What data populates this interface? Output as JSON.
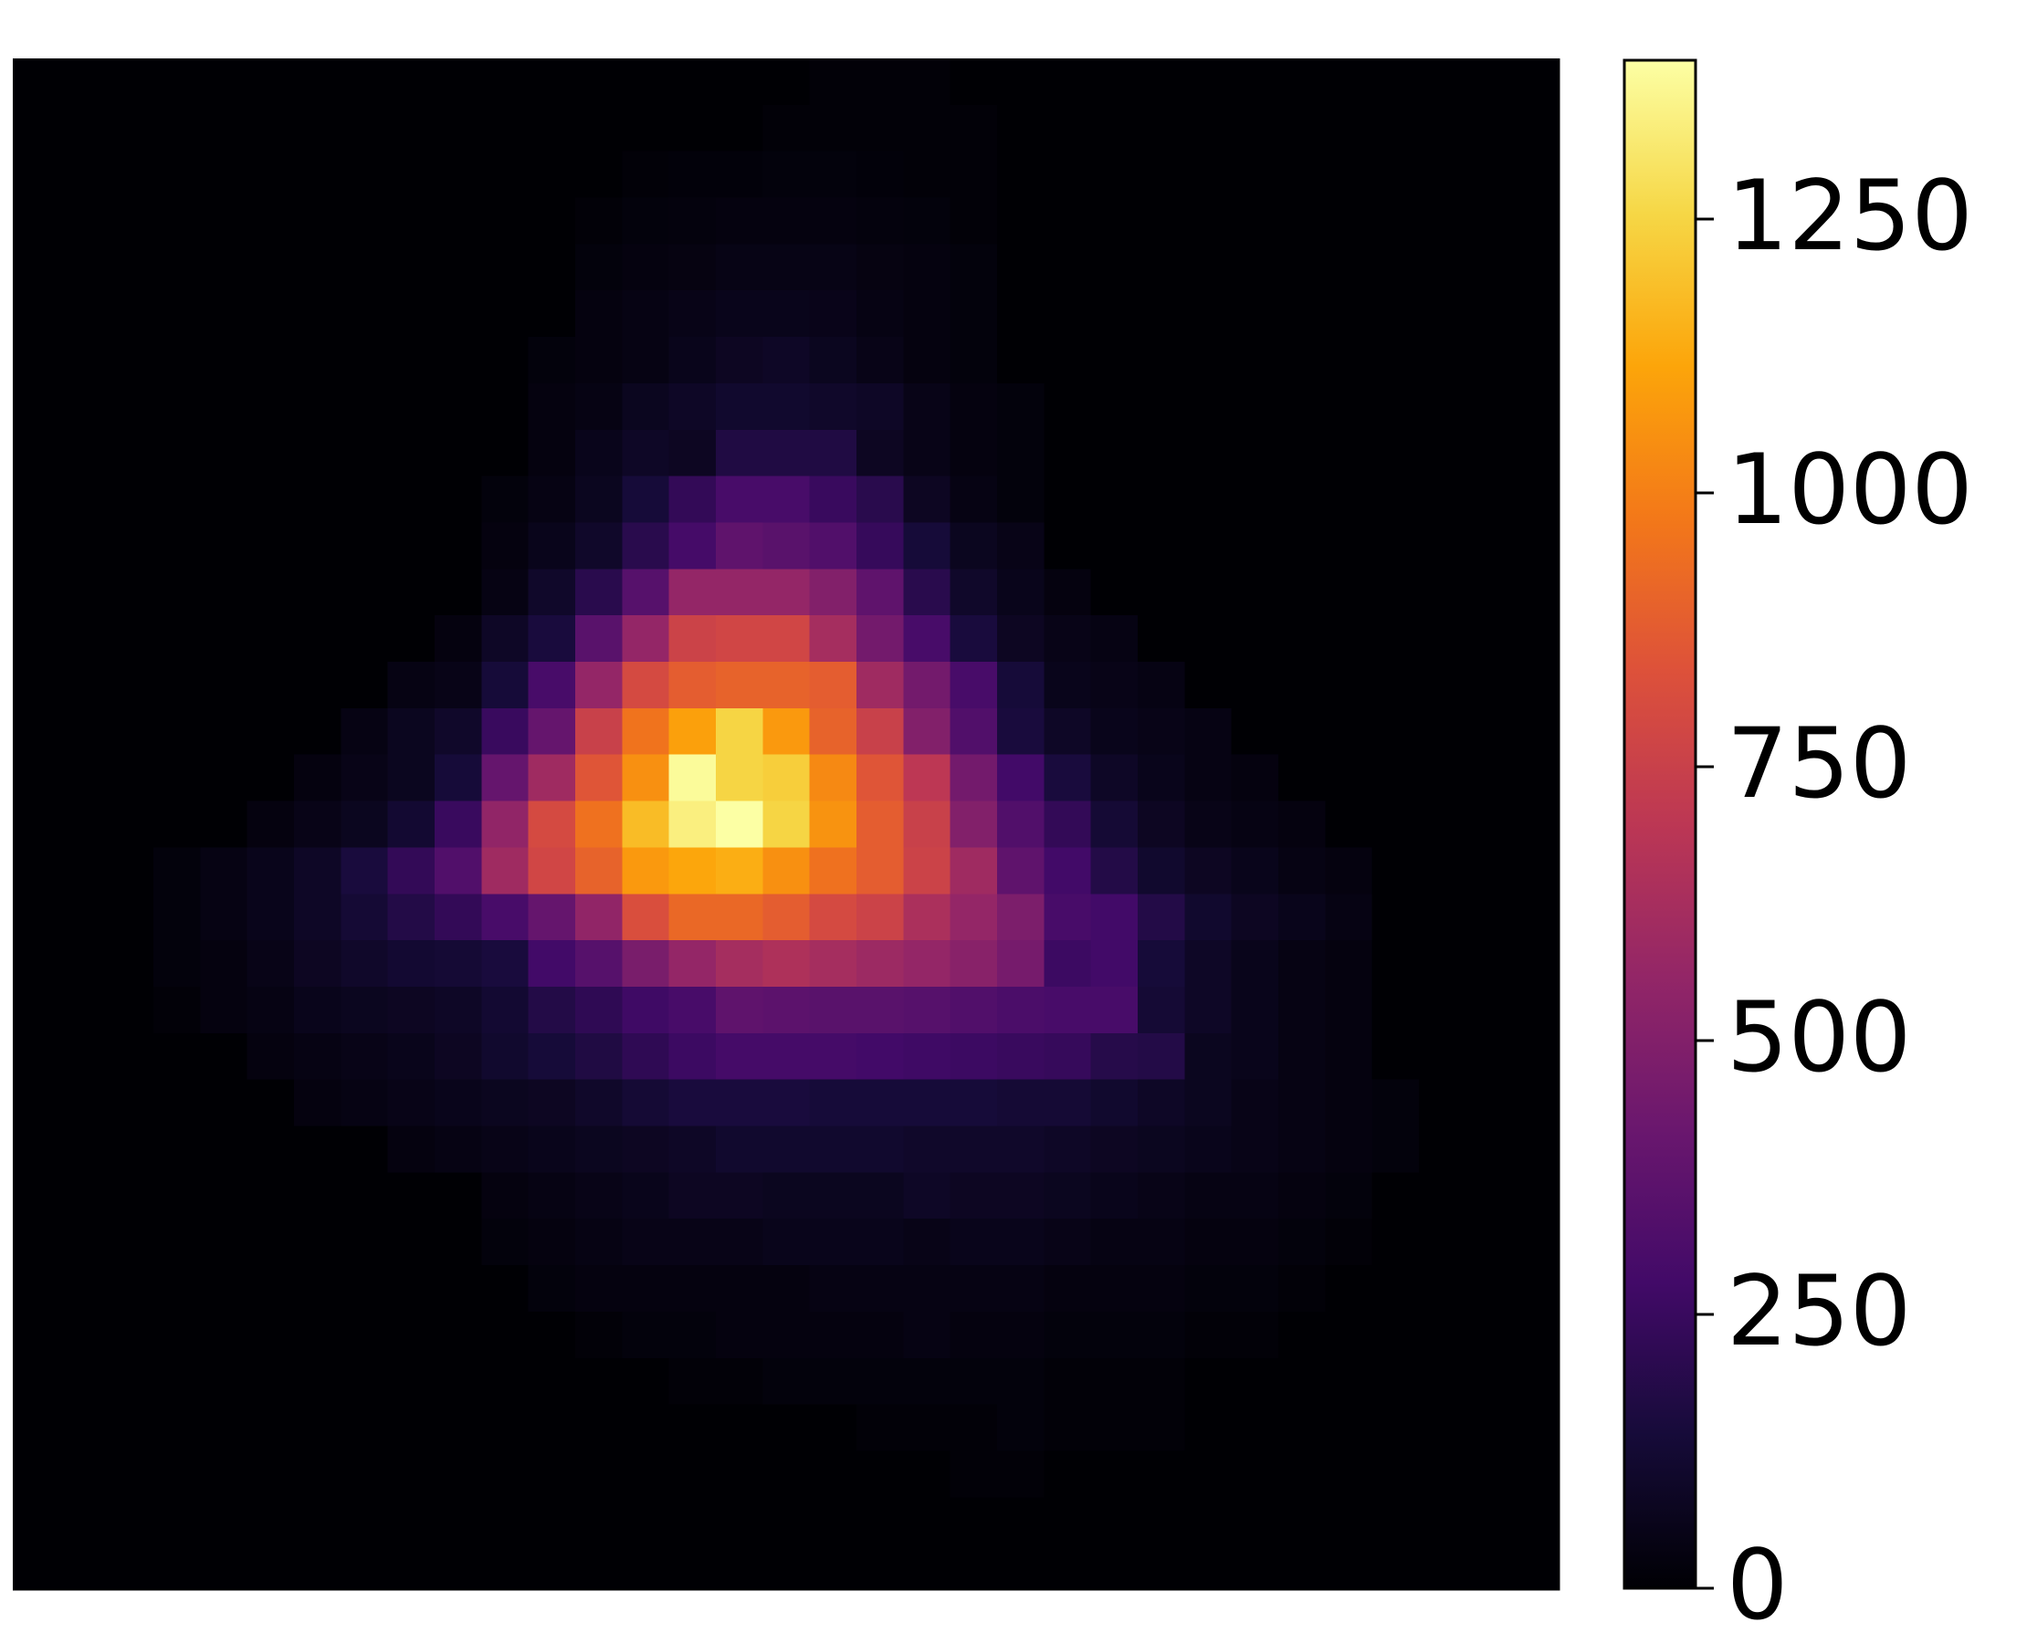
{
  "chart_data": {
    "type": "heatmap",
    "colormap": "inferno",
    "clim": [
      0,
      1395
    ],
    "cticks": [
      0,
      250,
      500,
      750,
      1000,
      1250
    ],
    "z": [
      [
        0,
        0,
        0,
        0,
        0,
        0,
        0,
        0,
        0,
        0,
        0,
        0,
        0,
        0,
        0,
        0,
        0,
        10,
        10,
        10,
        0,
        0,
        0,
        0,
        0,
        0,
        0,
        0,
        0,
        0,
        0,
        0,
        0
      ],
      [
        0,
        0,
        0,
        0,
        0,
        0,
        0,
        0,
        0,
        0,
        0,
        0,
        0,
        0,
        0,
        0,
        10,
        10,
        10,
        10,
        10,
        0,
        0,
        0,
        0,
        0,
        0,
        0,
        0,
        0,
        0,
        0,
        0
      ],
      [
        0,
        0,
        0,
        0,
        0,
        0,
        0,
        0,
        0,
        0,
        0,
        0,
        0,
        10,
        15,
        15,
        20,
        20,
        15,
        10,
        10,
        0,
        0,
        0,
        0,
        0,
        0,
        0,
        0,
        0,
        0,
        0,
        0
      ],
      [
        0,
        0,
        0,
        0,
        0,
        0,
        0,
        0,
        0,
        0,
        0,
        0,
        10,
        20,
        25,
        30,
        30,
        30,
        25,
        20,
        10,
        0,
        0,
        0,
        0,
        0,
        0,
        0,
        0,
        0,
        0,
        0,
        0
      ],
      [
        0,
        0,
        0,
        0,
        0,
        0,
        0,
        0,
        0,
        0,
        0,
        0,
        20,
        30,
        35,
        45,
        45,
        45,
        35,
        30,
        20,
        0,
        0,
        0,
        0,
        0,
        0,
        0,
        0,
        0,
        0,
        0,
        0
      ],
      [
        0,
        0,
        0,
        0,
        0,
        0,
        0,
        0,
        0,
        0,
        0,
        0,
        30,
        40,
        50,
        60,
        60,
        55,
        40,
        30,
        20,
        0,
        0,
        0,
        0,
        0,
        0,
        0,
        0,
        0,
        0,
        0,
        0
      ],
      [
        0,
        0,
        0,
        0,
        0,
        0,
        0,
        0,
        0,
        0,
        0,
        20,
        30,
        40,
        60,
        80,
        90,
        70,
        50,
        30,
        20,
        0,
        0,
        0,
        0,
        0,
        0,
        0,
        0,
        0,
        0,
        0,
        0
      ],
      [
        0,
        0,
        0,
        0,
        0,
        0,
        0,
        0,
        0,
        0,
        0,
        30,
        40,
        70,
        90,
        110,
        110,
        100,
        90,
        50,
        30,
        20,
        0,
        0,
        0,
        0,
        0,
        0,
        0,
        0,
        0,
        0,
        0
      ],
      [
        0,
        0,
        0,
        0,
        0,
        0,
        0,
        0,
        0,
        0,
        0,
        30,
        60,
        90,
        80,
        170,
        170,
        170,
        80,
        50,
        30,
        20,
        0,
        0,
        0,
        0,
        0,
        0,
        0,
        0,
        0,
        0,
        0
      ],
      [
        0,
        0,
        0,
        0,
        0,
        0,
        0,
        0,
        0,
        0,
        20,
        40,
        70,
        140,
        230,
        300,
        300,
        250,
        200,
        80,
        40,
        20,
        0,
        0,
        0,
        0,
        0,
        0,
        0,
        0,
        0,
        0,
        0
      ],
      [
        0,
        0,
        0,
        0,
        0,
        0,
        0,
        0,
        0,
        0,
        30,
        60,
        100,
        200,
        290,
        380,
        360,
        330,
        240,
        140,
        70,
        50,
        0,
        0,
        0,
        0,
        0,
        0,
        0,
        0,
        0,
        0,
        0
      ],
      [
        0,
        0,
        0,
        0,
        0,
        0,
        0,
        0,
        0,
        0,
        40,
        100,
        200,
        350,
        560,
        560,
        560,
        500,
        380,
        200,
        100,
        60,
        30,
        0,
        0,
        0,
        0,
        0,
        0,
        0,
        0,
        0,
        0
      ],
      [
        0,
        0,
        0,
        0,
        0,
        0,
        0,
        0,
        0,
        30,
        90,
        150,
        360,
        560,
        760,
        780,
        780,
        620,
        450,
        300,
        150,
        80,
        50,
        40,
        0,
        0,
        0,
        0,
        0,
        0,
        0,
        0,
        0
      ],
      [
        0,
        0,
        0,
        0,
        0,
        0,
        0,
        0,
        40,
        50,
        140,
        300,
        560,
        800,
        880,
        900,
        900,
        880,
        600,
        450,
        300,
        140,
        60,
        50,
        40,
        0,
        0,
        0,
        0,
        0,
        0,
        0,
        0
      ],
      [
        0,
        0,
        0,
        0,
        0,
        0,
        0,
        40,
        70,
        100,
        250,
        400,
        750,
        960,
        1100,
        1250,
        1080,
        900,
        750,
        500,
        330,
        150,
        90,
        60,
        50,
        40,
        0,
        0,
        0,
        0,
        0,
        0,
        0
      ],
      [
        0,
        0,
        0,
        0,
        0,
        0,
        30,
        50,
        70,
        140,
        400,
        600,
        850,
        1050,
        1380,
        1250,
        1230,
        1030,
        850,
        700,
        450,
        280,
        150,
        90,
        60,
        40,
        30,
        0,
        0,
        0,
        0,
        0,
        0
      ],
      [
        0,
        0,
        0,
        0,
        0,
        30,
        50,
        70,
        120,
        250,
        550,
        800,
        950,
        1180,
        1340,
        1395,
        1250,
        1060,
        880,
        750,
        500,
        330,
        230,
        130,
        80,
        50,
        40,
        30,
        0,
        0,
        0,
        0,
        0
      ],
      [
        0,
        0,
        0,
        20,
        40,
        60,
        90,
        150,
        230,
        330,
        600,
        780,
        900,
        1080,
        1120,
        1140,
        1050,
        950,
        880,
        760,
        600,
        380,
        280,
        180,
        110,
        80,
        60,
        40,
        30,
        0,
        0,
        0,
        0
      ],
      [
        0,
        0,
        0,
        20,
        40,
        60,
        90,
        130,
        180,
        230,
        300,
        400,
        550,
        820,
        920,
        920,
        880,
        800,
        760,
        640,
        560,
        480,
        300,
        280,
        180,
        110,
        80,
        60,
        40,
        0,
        0,
        0,
        0
      ],
      [
        0,
        0,
        0,
        20,
        30,
        50,
        80,
        100,
        120,
        130,
        150,
        280,
        350,
        470,
        560,
        620,
        650,
        620,
        590,
        560,
        520,
        460,
        260,
        280,
        140,
        90,
        60,
        40,
        30,
        0,
        0,
        0,
        0
      ],
      [
        0,
        0,
        0,
        10,
        30,
        40,
        60,
        70,
        80,
        90,
        120,
        180,
        220,
        270,
        300,
        380,
        370,
        360,
        360,
        350,
        330,
        310,
        300,
        300,
        130,
        90,
        60,
        40,
        30,
        0,
        0,
        0,
        0
      ],
      [
        0,
        0,
        0,
        0,
        0,
        30,
        40,
        50,
        60,
        80,
        110,
        140,
        170,
        220,
        260,
        290,
        290,
        290,
        280,
        270,
        260,
        250,
        240,
        190,
        180,
        70,
        60,
        40,
        30,
        0,
        0,
        0,
        0
      ],
      [
        0,
        0,
        0,
        0,
        0,
        0,
        30,
        40,
        50,
        60,
        70,
        80,
        100,
        130,
        150,
        150,
        150,
        140,
        140,
        140,
        140,
        130,
        130,
        110,
        90,
        70,
        50,
        40,
        30,
        20,
        0,
        0,
        0
      ],
      [
        0,
        0,
        0,
        0,
        0,
        0,
        0,
        0,
        30,
        40,
        50,
        60,
        70,
        80,
        90,
        110,
        110,
        110,
        110,
        100,
        100,
        100,
        90,
        80,
        70,
        60,
        50,
        40,
        30,
        20,
        0,
        0,
        0
      ],
      [
        0,
        0,
        0,
        0,
        0,
        0,
        0,
        0,
        0,
        0,
        30,
        40,
        50,
        60,
        80,
        80,
        70,
        70,
        70,
        90,
        80,
        80,
        70,
        60,
        50,
        40,
        40,
        30,
        20,
        0,
        0,
        0,
        0
      ],
      [
        0,
        0,
        0,
        0,
        0,
        0,
        0,
        0,
        0,
        0,
        20,
        30,
        40,
        50,
        50,
        50,
        60,
        60,
        60,
        50,
        60,
        60,
        50,
        40,
        40,
        30,
        30,
        20,
        10,
        0,
        0,
        0,
        0
      ],
      [
        0,
        0,
        0,
        0,
        0,
        0,
        0,
        0,
        0,
        0,
        0,
        20,
        30,
        30,
        30,
        30,
        30,
        40,
        40,
        40,
        40,
        40,
        30,
        30,
        30,
        20,
        20,
        10,
        0,
        0,
        0,
        0,
        0
      ],
      [
        0,
        0,
        0,
        0,
        0,
        0,
        0,
        0,
        0,
        0,
        0,
        0,
        10,
        20,
        20,
        30,
        30,
        30,
        30,
        40,
        30,
        30,
        20,
        20,
        20,
        10,
        10,
        0,
        0,
        0,
        0,
        0,
        0
      ],
      [
        0,
        0,
        0,
        0,
        0,
        0,
        0,
        0,
        0,
        0,
        0,
        0,
        0,
        0,
        10,
        10,
        20,
        20,
        20,
        20,
        20,
        20,
        10,
        10,
        10,
        0,
        0,
        0,
        0,
        0,
        0,
        0,
        0
      ],
      [
        0,
        0,
        0,
        0,
        0,
        0,
        0,
        0,
        0,
        0,
        0,
        0,
        0,
        0,
        0,
        0,
        0,
        0,
        10,
        10,
        10,
        20,
        10,
        10,
        10,
        0,
        0,
        0,
        0,
        0,
        0,
        0,
        0
      ],
      [
        0,
        0,
        0,
        0,
        0,
        0,
        0,
        0,
        0,
        0,
        0,
        0,
        0,
        0,
        0,
        0,
        0,
        0,
        0,
        0,
        10,
        10,
        0,
        0,
        0,
        0,
        0,
        0,
        0,
        0,
        0,
        0,
        0
      ],
      [
        0,
        0,
        0,
        0,
        0,
        0,
        0,
        0,
        0,
        0,
        0,
        0,
        0,
        0,
        0,
        0,
        0,
        0,
        0,
        0,
        0,
        0,
        0,
        0,
        0,
        0,
        0,
        0,
        0,
        0,
        0,
        0,
        0
      ],
      [
        0,
        0,
        0,
        0,
        0,
        0,
        0,
        0,
        0,
        0,
        0,
        0,
        0,
        0,
        0,
        0,
        0,
        0,
        0,
        0,
        0,
        0,
        0,
        0,
        0,
        0,
        0,
        0,
        0,
        0,
        0,
        0,
        0
      ]
    ]
  }
}
